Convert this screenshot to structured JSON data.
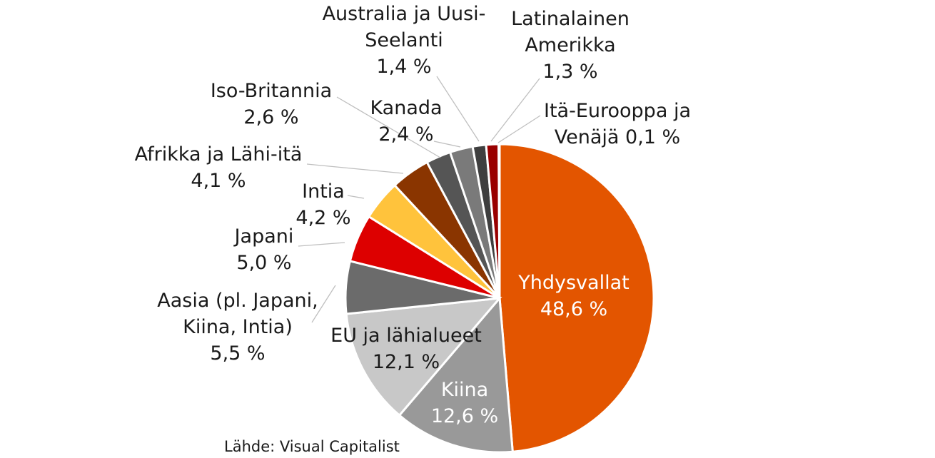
{
  "chart_data": {
    "type": "pie",
    "start": "top, clockwise",
    "slices": [
      {
        "name": "Yhdysvallat",
        "label_lines": [
          "Yhdysvallat",
          "48,6 %"
        ],
        "value": 48.6,
        "color": "#e35500",
        "label_color": "#ffffff"
      },
      {
        "name": "Kiina",
        "label_lines": [
          "Kiina",
          "12,6 %"
        ],
        "value": 12.6,
        "color": "#999999",
        "label_color": "#ffffff"
      },
      {
        "name": "EU ja lähialueet",
        "label_lines": [
          "EU ja lähialueet",
          "12,1 %"
        ],
        "value": 12.1,
        "color": "#c8c8c8",
        "label_color": "#1a1a1a"
      },
      {
        "name": "Aasia (pl. Japani, Kiina, Intia)",
        "label_lines": [
          "Aasia (pl. Japani,",
          "Kiina, Intia)",
          "5,5 %"
        ],
        "value": 5.5,
        "color": "#6b6b6b",
        "label_color": "#1a1a1a"
      },
      {
        "name": "Japani",
        "label_lines": [
          "Japani",
          "5,0 %"
        ],
        "value": 5.0,
        "color": "#dd0000",
        "label_color": "#1a1a1a"
      },
      {
        "name": "Intia",
        "label_lines": [
          "Intia",
          "4,2 %"
        ],
        "value": 4.2,
        "color": "#ffc33c",
        "label_color": "#1a1a1a"
      },
      {
        "name": "Afrikka ja Lähi-itä",
        "label_lines": [
          "Afrikka ja Lähi-itä",
          "4,1 %"
        ],
        "value": 4.1,
        "color": "#8a3500",
        "label_color": "#1a1a1a"
      },
      {
        "name": "Iso-Britannia",
        "label_lines": [
          "Iso-Britannia",
          "2,6 %"
        ],
        "value": 2.6,
        "color": "#555555",
        "label_color": "#1a1a1a"
      },
      {
        "name": "Kanada",
        "label_lines": [
          "Kanada",
          "2,4 %"
        ],
        "value": 2.4,
        "color": "#7a7a7a",
        "label_color": "#1a1a1a"
      },
      {
        "name": "Australia ja Uusi-Seelanti",
        "label_lines": [
          "Australia ja Uusi-",
          "Seelanti",
          "1,4 %"
        ],
        "value": 1.4,
        "color": "#3f3f3f",
        "label_color": "#1a1a1a"
      },
      {
        "name": "Latinalainen Amerikka",
        "label_lines": [
          "Latinalainen",
          "Amerikka",
          "1,3 %"
        ],
        "value": 1.3,
        "color": "#990000",
        "label_color": "#1a1a1a"
      },
      {
        "name": "Itä-Eurooppa ja Venäjä",
        "label_lines": [
          "Itä-Eurooppa ja",
          "Venäjä 0,1 %"
        ],
        "value": 0.1,
        "color": "#5a5a5a",
        "label_color": "#1a1a1a"
      }
    ]
  },
  "source": "Lähde: Visual Capitalist"
}
